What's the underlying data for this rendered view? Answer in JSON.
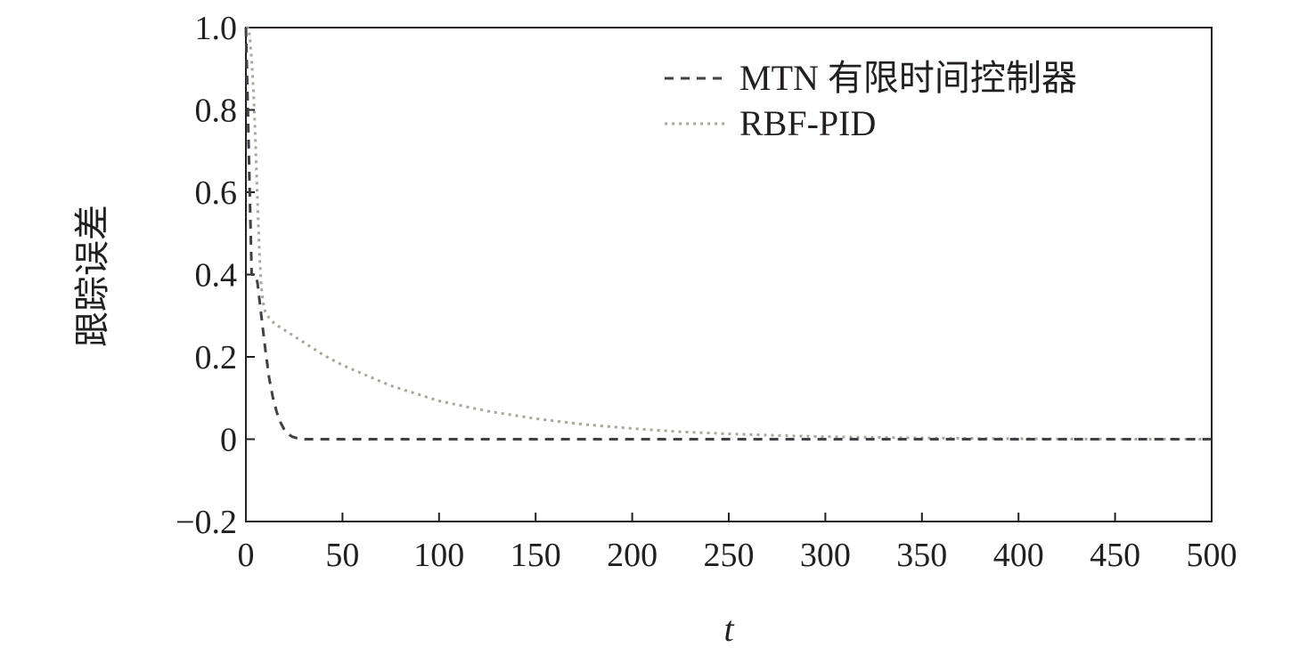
{
  "chart_data": {
    "type": "line",
    "title": "",
    "xlabel": "t",
    "ylabel": "跟踪误差",
    "xlim": [
      0,
      500
    ],
    "ylim": [
      -0.2,
      1.0
    ],
    "xticks": [
      "0",
      "50",
      "100",
      "150",
      "200",
      "250",
      "300",
      "350",
      "400",
      "450",
      "500"
    ],
    "yticks": [
      "−0.2",
      "0",
      "0.2",
      "0.4",
      "0.6",
      "0.8",
      "1.0"
    ],
    "grid": false,
    "legend_position": "top-right",
    "series": [
      {
        "name": "MTN 有限时间控制器",
        "style": "dashed",
        "color": "#3f4145",
        "x": [
          0,
          1,
          2,
          3,
          4,
          5,
          6,
          8,
          10,
          12,
          14,
          16,
          18,
          20,
          22,
          24,
          26,
          28,
          30,
          35,
          50,
          100,
          200,
          300,
          400,
          500
        ],
        "y": [
          1.0,
          0.8,
          0.6,
          0.4,
          0.4,
          0.4,
          0.38,
          0.3,
          0.22,
          0.15,
          0.1,
          0.065,
          0.04,
          0.022,
          0.012,
          0.006,
          0.003,
          0.001,
          0.0,
          0.0,
          0.0,
          0.0,
          0.0,
          0.0,
          0.0,
          0.0
        ]
      },
      {
        "name": "RBF-PID",
        "style": "dotted",
        "color": "#a6a69a",
        "x": [
          0,
          1,
          2,
          3,
          4,
          5,
          6,
          7,
          8,
          9,
          10,
          12,
          15,
          20,
          30,
          40,
          50,
          75,
          100,
          125,
          150,
          175,
          200,
          225,
          250,
          275,
          300,
          350,
          400,
          450,
          500
        ],
        "y": [
          1.0,
          1.0,
          0.98,
          0.92,
          0.84,
          0.72,
          0.58,
          0.45,
          0.37,
          0.33,
          0.31,
          0.295,
          0.28,
          0.265,
          0.235,
          0.205,
          0.18,
          0.13,
          0.093,
          0.068,
          0.05,
          0.036,
          0.026,
          0.018,
          0.013,
          0.009,
          0.006,
          0.003,
          0.001,
          0.0,
          0.0
        ]
      }
    ]
  }
}
